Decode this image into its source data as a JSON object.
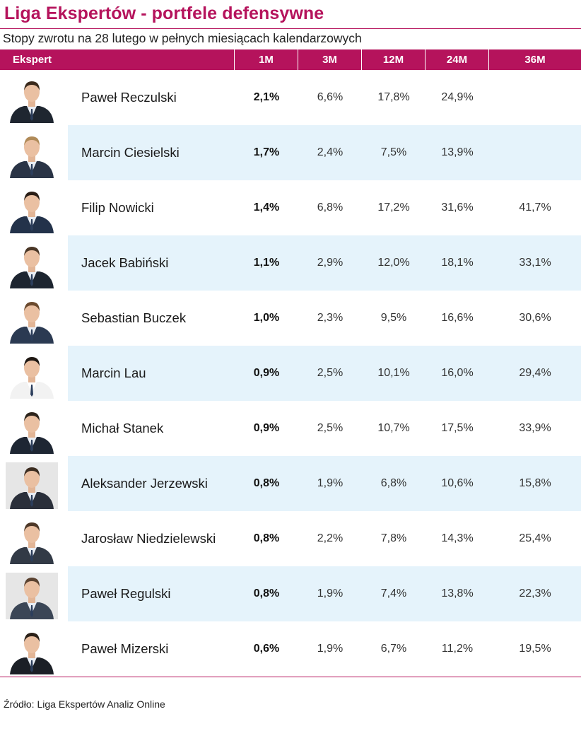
{
  "title": "Liga Ekspertów - portfele defensywne",
  "subtitle": "Stopy zwrotu na 28 lutego w pełnych miesiącach kalendarzowych",
  "colors": {
    "accent": "#b5135c",
    "row_shade": "#e5f3fb"
  },
  "header": {
    "expert": "Ekspert",
    "m1": "1M",
    "m3": "3M",
    "m12": "12M",
    "m24": "24M",
    "m36": "36M"
  },
  "rows": [
    {
      "name": "Paweł Reczulski",
      "m1": "2,1%",
      "m3": "6,6%",
      "m12": "17,8%",
      "m24": "24,9%",
      "m36": "",
      "photo": "avatar-photo"
    },
    {
      "name": "Marcin Ciesielski",
      "m1": "1,7%",
      "m3": "2,4%",
      "m12": "7,5%",
      "m24": "13,9%",
      "m36": "",
      "photo": "avatar-photo"
    },
    {
      "name": "Filip Nowicki",
      "m1": "1,4%",
      "m3": "6,8%",
      "m12": "17,2%",
      "m24": "31,6%",
      "m36": "41,7%",
      "photo": "avatar-photo"
    },
    {
      "name": "Jacek Babiński",
      "m1": "1,1%",
      "m3": "2,9%",
      "m12": "12,0%",
      "m24": "18,1%",
      "m36": "33,1%",
      "photo": "avatar-photo"
    },
    {
      "name": "Sebastian Buczek",
      "m1": "1,0%",
      "m3": "2,3%",
      "m12": "9,5%",
      "m24": "16,6%",
      "m36": "30,6%",
      "photo": "avatar-photo"
    },
    {
      "name": "Marcin Lau",
      "m1": "0,9%",
      "m3": "2,5%",
      "m12": "10,1%",
      "m24": "16,0%",
      "m36": "29,4%",
      "photo": "avatar-photo"
    },
    {
      "name": "Michał Stanek",
      "m1": "0,9%",
      "m3": "2,5%",
      "m12": "10,7%",
      "m24": "17,5%",
      "m36": "33,9%",
      "photo": "avatar-photo"
    },
    {
      "name": "Aleksander Jerzewski",
      "m1": "0,8%",
      "m3": "1,9%",
      "m12": "6,8%",
      "m24": "10,6%",
      "m36": "15,8%",
      "photo": "avatar-photo"
    },
    {
      "name": "Jarosław Niedzielewski",
      "m1": "0,8%",
      "m3": "2,2%",
      "m12": "7,8%",
      "m24": "14,3%",
      "m36": "25,4%",
      "photo": "avatar-photo"
    },
    {
      "name": "Paweł Regulski",
      "m1": "0,8%",
      "m3": "1,9%",
      "m12": "7,4%",
      "m24": "13,8%",
      "m36": "22,3%",
      "photo": "avatar-photo"
    },
    {
      "name": "Paweł Mizerski",
      "m1": "0,6%",
      "m3": "1,9%",
      "m12": "6,7%",
      "m24": "11,2%",
      "m36": "19,5%",
      "photo": "avatar-photo"
    }
  ],
  "source": "Źródło: Liga Ekspertów Analiz Online"
}
